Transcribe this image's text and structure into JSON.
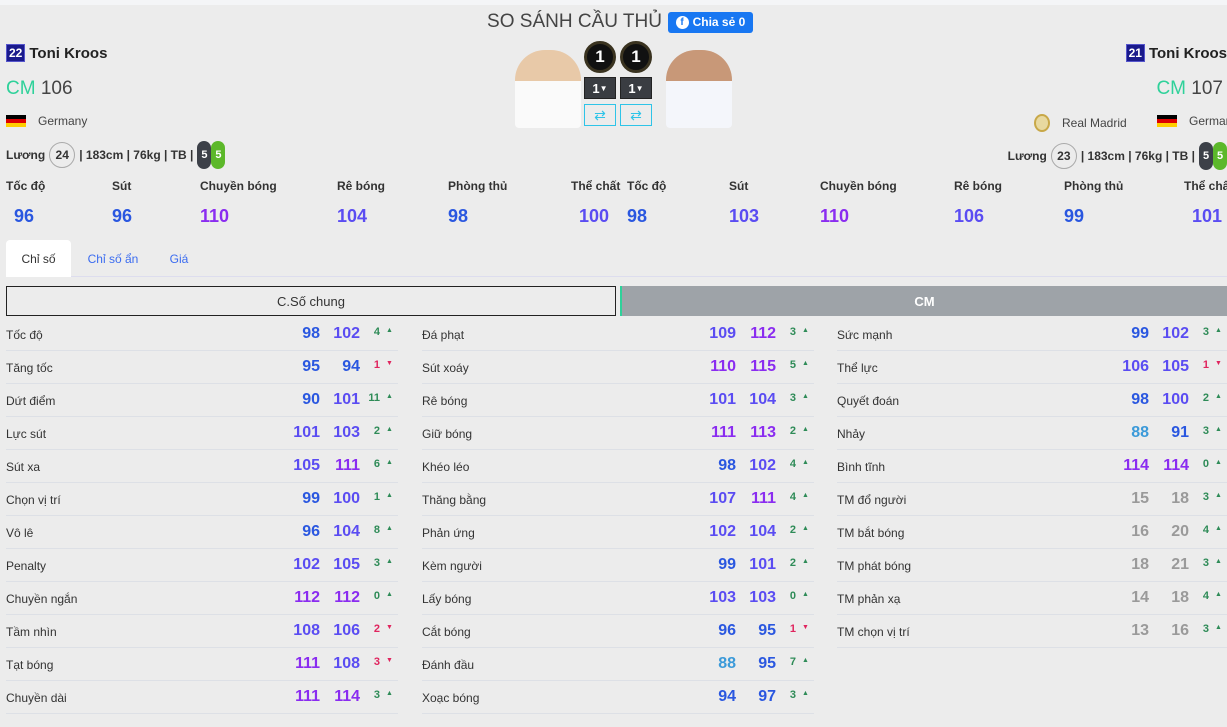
{
  "title": "SO SÁNH CẦU THỦ",
  "share": {
    "label": "Chia sẻ 0",
    "icon": "facebook-icon"
  },
  "left": {
    "number": "22",
    "name": "Toni Kroos",
    "position": "CM",
    "ovr": "106",
    "nation": "Germany",
    "salary_label": "Lương",
    "salary": "24",
    "details": "| 183cm | 76kg | TB |",
    "foot_left": "5",
    "foot_right": "5",
    "level": "1",
    "level_select": "1"
  },
  "right": {
    "number": "21",
    "name": "Toni Kroos",
    "position": "CM",
    "ovr": "107",
    "club": "Real Madrid",
    "nation": "Germany",
    "salary_label": "Lương",
    "salary": "23",
    "details": "| 183cm | 76kg | TB |",
    "foot_left": "5",
    "foot_right": "5",
    "level": "1",
    "level_select": "1"
  },
  "summary_labels": [
    "Tốc độ",
    "Sút",
    "Chuyền bóng",
    "Rê bóng",
    "Phòng thủ",
    "Thể chất"
  ],
  "left_summary": [
    96,
    96,
    110,
    104,
    98,
    100
  ],
  "right_summary": [
    98,
    103,
    110,
    106,
    99,
    101
  ],
  "tabs": [
    "Chỉ số",
    "Chỉ số ẩn",
    "Giá"
  ],
  "sections": {
    "general": "C.Số chung",
    "position": "CM"
  },
  "colors": {
    "up": "#2e8b57",
    "down": "#e0245e",
    "tier_110": "#8a2cf0",
    "tier_100": "#5a4cf2",
    "tier_90": "#2a57e0",
    "tier_80": "#3b9ad9",
    "tier_low": "#9a9a9a"
  },
  "stats": [
    [
      [
        "Tốc độ",
        98,
        102,
        "4",
        "up"
      ],
      [
        "Tăng tốc",
        95,
        94,
        "1",
        "down"
      ],
      [
        "Dứt điểm",
        90,
        101,
        "11",
        "up"
      ],
      [
        "Lực sút",
        101,
        103,
        "2",
        "up"
      ],
      [
        "Sút xa",
        105,
        111,
        "6",
        "up"
      ],
      [
        "Chọn vị trí",
        99,
        100,
        "1",
        "up"
      ],
      [
        "Vô lê",
        96,
        104,
        "8",
        "up"
      ],
      [
        "Penalty",
        102,
        105,
        "3",
        "up"
      ],
      [
        "Chuyền ngắn",
        112,
        112,
        "0",
        "up"
      ],
      [
        "Tầm nhìn",
        108,
        106,
        "2",
        "down"
      ],
      [
        "Tạt bóng",
        111,
        108,
        "3",
        "down"
      ],
      [
        "Chuyền dài",
        111,
        114,
        "3",
        "up"
      ]
    ],
    [
      [
        "Đá phạt",
        109,
        112,
        "3",
        "up"
      ],
      [
        "Sút xoáy",
        110,
        115,
        "5",
        "up"
      ],
      [
        "Rê bóng",
        101,
        104,
        "3",
        "up"
      ],
      [
        "Giữ bóng",
        111,
        113,
        "2",
        "up"
      ],
      [
        "Khéo léo",
        98,
        102,
        "4",
        "up"
      ],
      [
        "Thăng bằng",
        107,
        111,
        "4",
        "up"
      ],
      [
        "Phản ứng",
        102,
        104,
        "2",
        "up"
      ],
      [
        "Kèm người",
        99,
        101,
        "2",
        "up"
      ],
      [
        "Lấy bóng",
        103,
        103,
        "0",
        "up"
      ],
      [
        "Cắt bóng",
        96,
        95,
        "1",
        "down"
      ],
      [
        "Đánh đầu",
        88,
        95,
        "7",
        "up"
      ],
      [
        "Xoạc bóng",
        94,
        97,
        "3",
        "up"
      ]
    ],
    [
      [
        "Sức mạnh",
        99,
        102,
        "3",
        "up"
      ],
      [
        "Thể lực",
        106,
        105,
        "1",
        "down"
      ],
      [
        "Quyết đoán",
        98,
        100,
        "2",
        "up"
      ],
      [
        "Nhảy",
        88,
        91,
        "3",
        "up"
      ],
      [
        "Bình tĩnh",
        114,
        114,
        "0",
        "up"
      ],
      [
        "TM đổ người",
        15,
        18,
        "3",
        "up"
      ],
      [
        "TM bắt bóng",
        16,
        20,
        "4",
        "up"
      ],
      [
        "TM phát bóng",
        18,
        21,
        "3",
        "up"
      ],
      [
        "TM phản xạ",
        14,
        18,
        "4",
        "up"
      ],
      [
        "TM chọn vị trí",
        13,
        16,
        "3",
        "up"
      ]
    ]
  ]
}
